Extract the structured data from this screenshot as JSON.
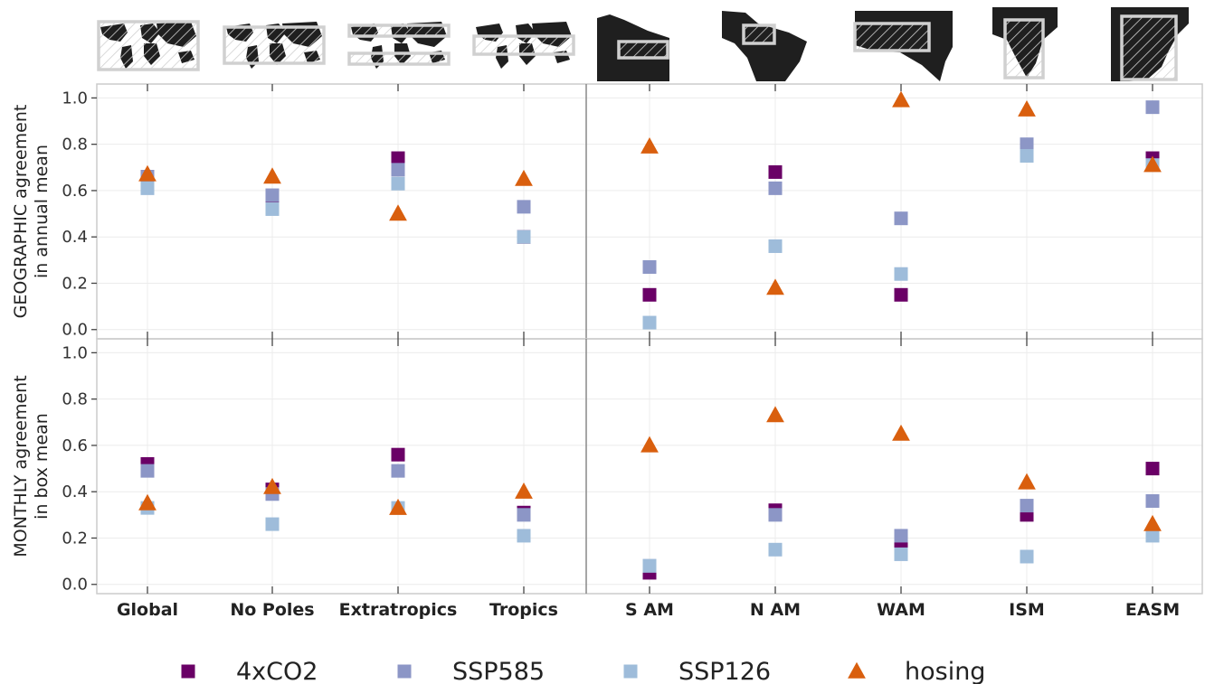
{
  "chart_data": {
    "type": "scatter",
    "categories": [
      "Global",
      "No Poles",
      "Extratropics",
      "Tropics",
      "S AM",
      "N AM",
      "WAM",
      "ISM",
      "EASM"
    ],
    "ylim": [
      -0.04,
      1.06
    ],
    "yticks": [
      "0.0",
      "0.2",
      "0.4",
      "0.6",
      "0.8",
      "1.0"
    ],
    "grid": true,
    "legend_position": "bottom",
    "colors": {
      "4xCO2": "#6a0066",
      "SSP585": "#8c96c6",
      "SSP126": "#9ebcda",
      "hosing": "#d95f0e"
    },
    "markers": {
      "4xCO2": "square",
      "SSP585": "square",
      "SSP126": "square",
      "hosing": "triangle"
    },
    "legend": [
      "4xCO2",
      "SSP585",
      "SSP126",
      "hosing"
    ],
    "panels": [
      {
        "ylabel": [
          "GEOGRAPHIC agreement",
          "in annual mean"
        ],
        "series": [
          {
            "name": "4xCO2",
            "values": [
              0.66,
              0.55,
              0.74,
              0.4,
              0.15,
              0.68,
              0.15,
              0.78,
              0.74
            ]
          },
          {
            "name": "SSP585",
            "values": [
              0.66,
              0.58,
              0.69,
              0.53,
              0.27,
              0.61,
              0.48,
              0.8,
              0.96
            ]
          },
          {
            "name": "SSP126",
            "values": [
              0.61,
              0.52,
              0.63,
              0.4,
              0.03,
              0.36,
              0.24,
              0.75,
              0.71
            ]
          },
          {
            "name": "hosing",
            "values": [
              0.67,
              0.66,
              0.5,
              0.65,
              0.79,
              0.18,
              0.99,
              0.95,
              0.71
            ]
          }
        ]
      },
      {
        "ylabel": [
          "MONTHLY agreement",
          "in box mean"
        ],
        "series": [
          {
            "name": "4xCO2",
            "values": [
              0.52,
              0.41,
              0.56,
              0.31,
              0.05,
              0.32,
              0.17,
              0.3,
              0.5
            ]
          },
          {
            "name": "SSP585",
            "values": [
              0.49,
              0.39,
              0.49,
              0.3,
              0.08,
              0.3,
              0.21,
              0.34,
              0.36
            ]
          },
          {
            "name": "SSP126",
            "values": [
              0.33,
              0.26,
              0.33,
              0.21,
              0.08,
              0.15,
              0.13,
              0.12,
              0.21
            ]
          },
          {
            "name": "hosing",
            "values": [
              0.35,
              0.42,
              0.33,
              0.4,
              0.6,
              0.73,
              0.65,
              0.44,
              0.26
            ]
          }
        ]
      }
    ],
    "region_maps": [
      {
        "category": "Global",
        "icon": "world-map-global-box-icon"
      },
      {
        "category": "No Poles",
        "icon": "world-map-no-poles-box-icon"
      },
      {
        "category": "Extratropics",
        "icon": "world-map-extratropics-boxes-icon"
      },
      {
        "category": "Tropics",
        "icon": "world-map-tropics-box-icon"
      },
      {
        "category": "S AM",
        "icon": "south-america-box-icon"
      },
      {
        "category": "N AM",
        "icon": "northern-south-america-box-icon"
      },
      {
        "category": "WAM",
        "icon": "west-africa-box-icon"
      },
      {
        "category": "ISM",
        "icon": "india-box-icon"
      },
      {
        "category": "EASM",
        "icon": "east-asia-box-icon"
      }
    ]
  }
}
